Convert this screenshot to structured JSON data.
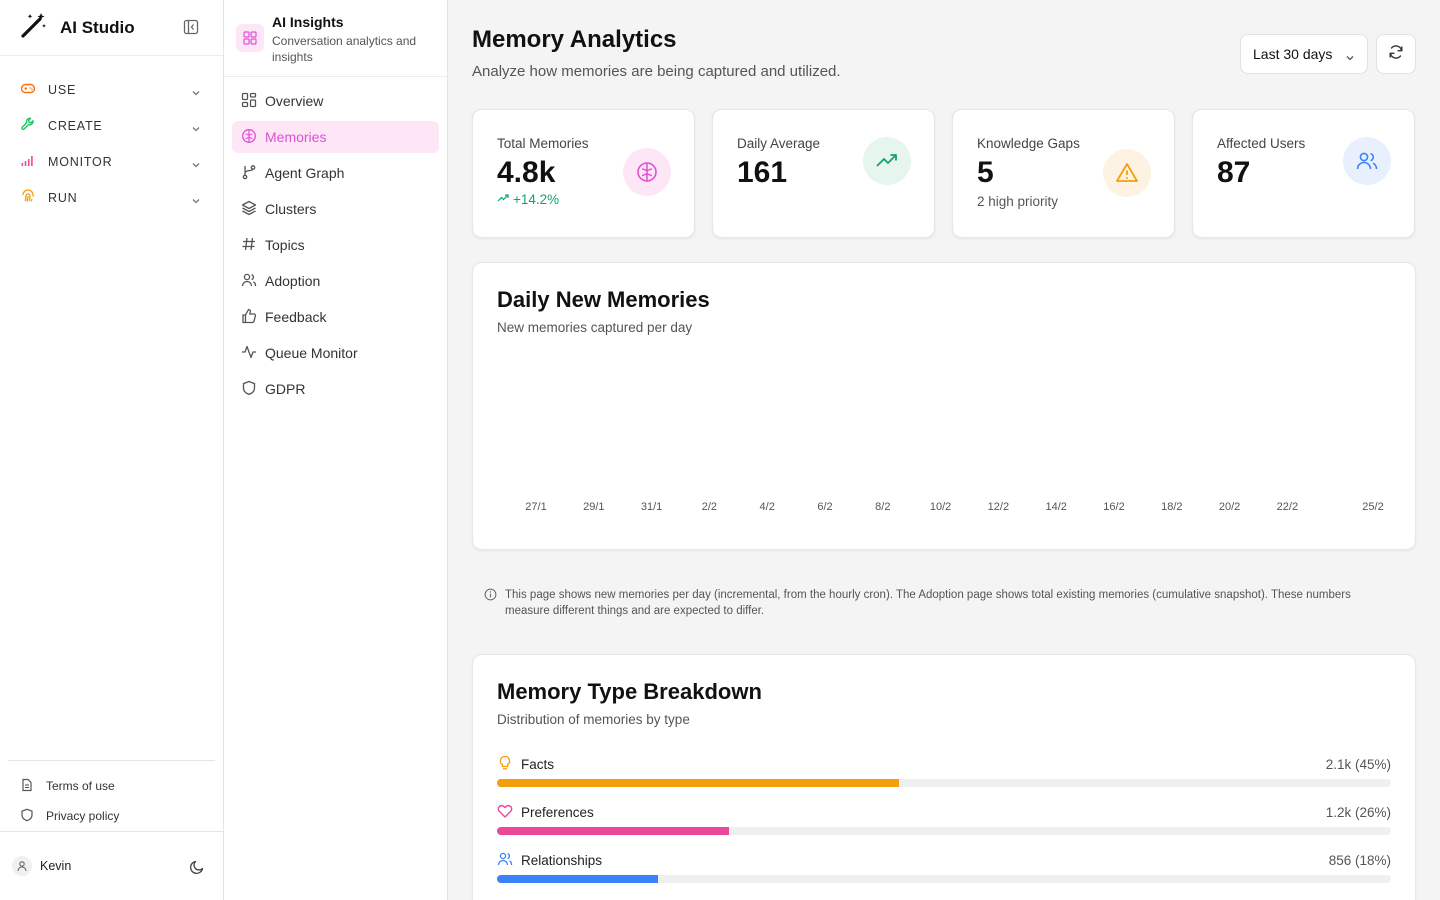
{
  "app": {
    "title": "AI Studio"
  },
  "nav": {
    "groups": [
      {
        "label": "USE",
        "icon": "gamepad-icon",
        "color": "#f97316"
      },
      {
        "label": "CREATE",
        "icon": "wrench-icon",
        "color": "#22c55e"
      },
      {
        "label": "MONITOR",
        "icon": "signal-icon",
        "color": "#ec4899"
      },
      {
        "label": "RUN",
        "icon": "fingerprint-icon",
        "color": "#f59e0b"
      }
    ]
  },
  "footer": {
    "terms": "Terms of use",
    "privacy": "Privacy policy",
    "user": "Kevin"
  },
  "section": {
    "title": "AI Insights",
    "description": "Conversation analytics and insights",
    "items": [
      {
        "label": "Overview",
        "icon": "grid-icon"
      },
      {
        "label": "Memories",
        "icon": "brain-icon"
      },
      {
        "label": "Agent Graph",
        "icon": "git-branch-icon"
      },
      {
        "label": "Clusters",
        "icon": "layers-icon"
      },
      {
        "label": "Topics",
        "icon": "hash-icon"
      },
      {
        "label": "Adoption",
        "icon": "users-icon"
      },
      {
        "label": "Feedback",
        "icon": "thumbs-up-icon"
      },
      {
        "label": "Queue Monitor",
        "icon": "activity-icon"
      },
      {
        "label": "GDPR",
        "icon": "shield-icon"
      }
    ]
  },
  "page": {
    "title": "Memory Analytics",
    "subtitle": "Analyze how memories are being captured and utilized.",
    "range": "Last 30 days"
  },
  "stats": [
    {
      "label": "Total Memories",
      "value": "4.8k",
      "trend": "+14.2%",
      "icon": "brain-icon",
      "color": "#e04fd6"
    },
    {
      "label": "Daily Average",
      "value": "161",
      "icon": "trending-up-icon",
      "color": "#10a36b"
    },
    {
      "label": "Knowledge Gaps",
      "value": "5",
      "sub": "2 high priority",
      "icon": "alert-triangle-icon",
      "color": "#f59e0b"
    },
    {
      "label": "Affected Users",
      "value": "87",
      "icon": "users-icon",
      "color": "#3b82f6"
    }
  ],
  "chart_data": {
    "type": "bar",
    "title": "Daily New Memories",
    "subtitle": "New memories captured per day",
    "x_ticks": [
      "27/1",
      "29/1",
      "31/1",
      "2/2",
      "4/2",
      "6/2",
      "8/2",
      "10/2",
      "12/2",
      "14/2",
      "16/2",
      "18/2",
      "20/2",
      "22/2",
      "25/2"
    ],
    "values": []
  },
  "note": "This page shows new memories per day (incremental, from the hourly cron). The Adoption page shows total existing memories (cumulative snapshot). These numbers measure different things and are expected to differ.",
  "breakdown": {
    "title": "Memory Type Breakdown",
    "subtitle": "Distribution of memories by type",
    "items": [
      {
        "label": "Facts",
        "value": "2.1k (45%)",
        "percent": 45,
        "color": "#f59e0b",
        "icon": "lightbulb-icon"
      },
      {
        "label": "Preferences",
        "value": "1.2k (26%)",
        "percent": 26,
        "color": "#ec4899",
        "icon": "heart-icon"
      },
      {
        "label": "Relationships",
        "value": "856 (18%)",
        "percent": 18,
        "color": "#3b82f6",
        "icon": "users-icon"
      }
    ]
  }
}
